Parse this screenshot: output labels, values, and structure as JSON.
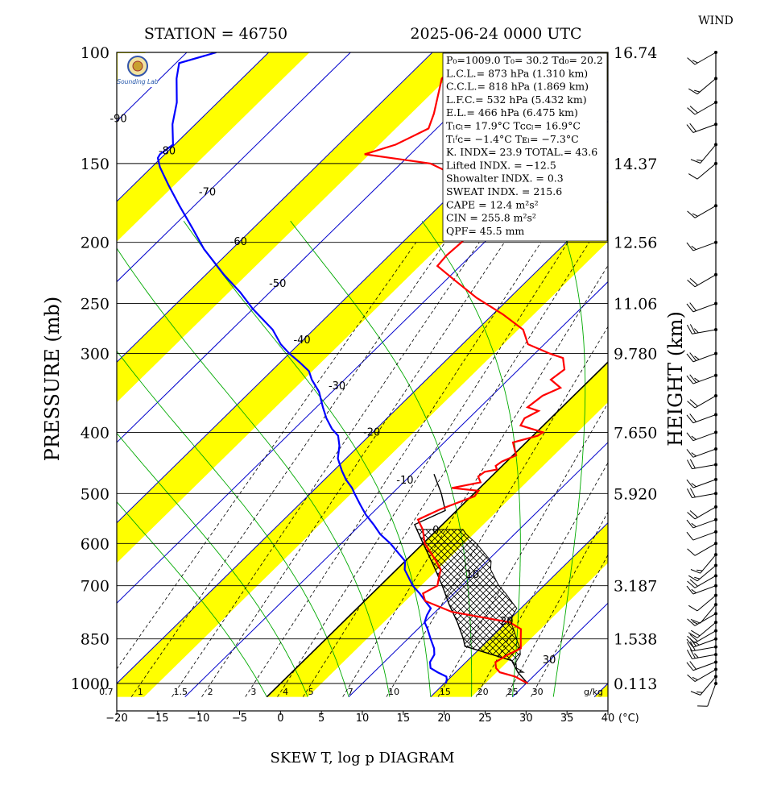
{
  "header": {
    "station": "STATION = 46750",
    "datetime": "2025-06-24 0000 UTC",
    "wind_label": "WIND",
    "footer_title": "SKEW T, log p DIAGRAM",
    "logo_text": "Sounding Lab"
  },
  "colors": {
    "band": "#ffff00",
    "isotherm": "#0000cc",
    "moist_adiabat": "#00aa00",
    "temperature": "#ff0000",
    "dewpoint": "#0000ff",
    "mixing_ratio": "#000000",
    "cape_hatch": "#000000"
  },
  "indices": [
    "P₀=1009.0 T₀= 30.2 Td₀= 20.2",
    "L.C.L.= 873 hPa (1.310 km)",
    "C.C.L.= 818 hPa (1.869 km)",
    "L.F.C.= 532 hPa (5.432 km)",
    "E.L.= 466 hPa (6.475 km)",
    "Tₗᴄₗ= 17.9°C  Tᴄᴄₗ= 16.9°C",
    "Tₗᶠᴄ= −1.4°C  Tᴇₗ= −7.3°C",
    "K. INDX= 23.9  TOTAL.= 43.6",
    "Lifted INDX. = −12.5",
    "Showalter INDX. =    0.3",
    "SWEAT INDX. =  215.6",
    "CAPE =    12.4 m²s²",
    "CIN   =  255.8 m²s²",
    "QPF= 45.5 mm"
  ],
  "chart_data": {
    "type": "skew-t",
    "title": "SKEW T, log p DIAGRAM",
    "ylabel": "PRESSURE (mb)",
    "y2label": "HEIGHT (km)",
    "xunit": "(°C)",
    "xlim": [
      -20,
      40
    ],
    "ylim": [
      1000,
      100
    ],
    "y_scale": "log",
    "x_ticks": [
      "−20",
      "−15",
      "−10",
      "−5",
      "0",
      "5",
      "10",
      "15",
      "20",
      "25",
      "30",
      "35",
      "40"
    ],
    "x_tick_values": [
      -20,
      -15,
      -10,
      -5,
      0,
      5,
      10,
      15,
      20,
      25,
      30,
      35,
      40
    ],
    "pressure_levels": [
      1000,
      850,
      700,
      600,
      500,
      400,
      300,
      250,
      200,
      150,
      100
    ],
    "pressure_labels": [
      "1000",
      "850",
      "700",
      "600",
      "500",
      "400",
      "300",
      "250",
      "200",
      "150",
      "100"
    ],
    "heights": [
      {
        "p": 1000,
        "label": "0.113"
      },
      {
        "p": 850,
        "label": "1.538"
      },
      {
        "p": 700,
        "label": "3.187"
      },
      {
        "p": 500,
        "label": "5.920"
      },
      {
        "p": 400,
        "label": "7.650"
      },
      {
        "p": 300,
        "label": "9.780"
      },
      {
        "p": 250,
        "label": "11.06"
      },
      {
        "p": 200,
        "label": "12.56"
      },
      {
        "p": 150,
        "label": "14.37"
      },
      {
        "p": 100,
        "label": "16.74"
      }
    ],
    "isotherm_labels": [
      {
        "t": -90,
        "p": 127,
        "label": "-90"
      },
      {
        "t": -80,
        "p": 143,
        "label": "-80"
      },
      {
        "t": -70,
        "p": 166,
        "label": "-70"
      },
      {
        "t": -60,
        "p": 199,
        "label": "-60"
      },
      {
        "t": -50,
        "p": 232,
        "label": "-50"
      },
      {
        "t": -40,
        "p": 285,
        "label": "-40"
      },
      {
        "t": -30,
        "p": 337,
        "label": "-30"
      },
      {
        "t": -20,
        "p": 399,
        "label": "-20"
      },
      {
        "t": -10,
        "p": 475,
        "label": "-10"
      },
      {
        "t": 0,
        "p": 570,
        "label": "0"
      },
      {
        "t": 10,
        "p": 670,
        "label": "10"
      },
      {
        "t": 20,
        "p": 795,
        "label": "20"
      },
      {
        "t": 30,
        "p": 915,
        "label": "30"
      }
    ],
    "mixing_ratios": [
      0.7,
      1,
      1.5,
      2,
      3,
      4,
      5,
      7,
      10,
      15,
      20,
      25,
      30
    ],
    "mixing_ratio_labels": [
      "0.7",
      "1",
      "1.5",
      "2",
      "3",
      "4",
      "5",
      "7",
      "10",
      "15",
      "20",
      "25",
      "30"
    ],
    "mixing_ratio_unit": "g/kg",
    "series": [
      {
        "name": "temperature",
        "points": [
          [
            1000,
            30.2
          ],
          [
            975,
            27.8
          ],
          [
            960,
            25.4
          ],
          [
            945,
            24.4
          ],
          [
            925,
            23.6
          ],
          [
            900,
            24.2
          ],
          [
            880,
            25.0
          ],
          [
            850,
            23.8
          ],
          [
            820,
            22.6
          ],
          [
            800,
            20.4
          ],
          [
            770,
            12.0
          ],
          [
            740,
            7.4
          ],
          [
            720,
            6.2
          ],
          [
            700,
            7.0
          ],
          [
            680,
            6.2
          ],
          [
            660,
            5.4
          ],
          [
            640,
            3.8
          ],
          [
            600,
            0.2
          ],
          [
            570,
            -1.8
          ],
          [
            550,
            -3.6
          ],
          [
            530,
            -2.2
          ],
          [
            505,
            0.4
          ],
          [
            495,
            0.2
          ],
          [
            490,
            -3.4
          ],
          [
            480,
            -0.6
          ],
          [
            470,
            -1.6
          ],
          [
            462,
            -1.4
          ],
          [
            458,
            -0.2
          ],
          [
            452,
            -0.8
          ],
          [
            445,
            -0.6
          ],
          [
            435,
            0.4
          ],
          [
            425,
            -0.6
          ],
          [
            415,
            -1.6
          ],
          [
            405,
            0.6
          ],
          [
            400,
            0.8
          ],
          [
            390,
            -2.8
          ],
          [
            380,
            -3.2
          ],
          [
            370,
            -2.4
          ],
          [
            365,
            -4.2
          ],
          [
            350,
            -3.8
          ],
          [
            340,
            -2.6
          ],
          [
            330,
            -4.8
          ],
          [
            318,
            -4.4
          ],
          [
            305,
            -6.0
          ],
          [
            300,
            -8.2
          ],
          [
            290,
            -12.0
          ],
          [
            275,
            -14.4
          ],
          [
            260,
            -18.8
          ],
          [
            245,
            -24.0
          ],
          [
            230,
            -28.8
          ],
          [
            218,
            -32.8
          ],
          [
            210,
            -33.0
          ],
          [
            200,
            -32.8
          ],
          [
            185,
            -33.0
          ],
          [
            170,
            -36.0
          ],
          [
            158,
            -41.0
          ],
          [
            150,
            -46.4
          ],
          [
            145,
            -55.6
          ],
          [
            140,
            -53.0
          ],
          [
            132,
            -51.0
          ],
          [
            125,
            -52.2
          ],
          [
            110,
            -55.6
          ],
          [
            102,
            -55.2
          ],
          [
            100,
            -54.8
          ]
        ]
      },
      {
        "name": "dewpoint",
        "points": [
          [
            1000,
            20.2
          ],
          [
            985,
            19.8
          ],
          [
            975,
            19.4
          ],
          [
            960,
            17.8
          ],
          [
            945,
            16.4
          ],
          [
            925,
            15.6
          ],
          [
            900,
            15.2
          ],
          [
            880,
            14.4
          ],
          [
            850,
            12.8
          ],
          [
            820,
            11.2
          ],
          [
            800,
            10.0
          ],
          [
            780,
            9.4
          ],
          [
            760,
            9.0
          ],
          [
            740,
            7.4
          ],
          [
            720,
            5.8
          ],
          [
            700,
            4.0
          ],
          [
            660,
            1.0
          ],
          [
            640,
            0.0
          ],
          [
            600,
            -4.0
          ],
          [
            580,
            -6.4
          ],
          [
            560,
            -8.4
          ],
          [
            540,
            -10.6
          ],
          [
            520,
            -12.6
          ],
          [
            500,
            -14.6
          ],
          [
            490,
            -15.6
          ],
          [
            475,
            -17.4
          ],
          [
            460,
            -19.0
          ],
          [
            440,
            -21.0
          ],
          [
            420,
            -22.4
          ],
          [
            405,
            -23.8
          ],
          [
            395,
            -25.4
          ],
          [
            380,
            -27.4
          ],
          [
            365,
            -29.2
          ],
          [
            345,
            -31.6
          ],
          [
            330,
            -34.0
          ],
          [
            320,
            -35.4
          ],
          [
            310,
            -37.6
          ],
          [
            300,
            -40.0
          ],
          [
            290,
            -42.2
          ],
          [
            275,
            -45.0
          ],
          [
            255,
            -50.0
          ],
          [
            240,
            -53.6
          ],
          [
            225,
            -57.8
          ],
          [
            205,
            -63.4
          ],
          [
            190,
            -67.4
          ],
          [
            175,
            -71.8
          ],
          [
            162,
            -75.8
          ],
          [
            152,
            -79.0
          ],
          [
            147,
            -80.4
          ],
          [
            145,
            -80.6
          ],
          [
            140,
            -80.2
          ],
          [
            130,
            -82.8
          ],
          [
            120,
            -85.0
          ],
          [
            110,
            -88.0
          ],
          [
            104,
            -89.6
          ],
          [
            100,
            -86.4
          ]
        ]
      },
      {
        "name": "parcel",
        "points": [
          [
            1000,
            30.2
          ],
          [
            960,
            27.6
          ],
          [
            920,
            25.4
          ],
          [
            873,
            17.9
          ],
          [
            850,
            16.8
          ],
          [
            800,
            14.0
          ],
          [
            750,
            10.8
          ],
          [
            700,
            7.6
          ],
          [
            650,
            4.0
          ],
          [
            600,
            0.0
          ],
          [
            560,
            -3.4
          ],
          [
            532,
            -1.4
          ],
          [
            500,
            -4.0
          ],
          [
            466,
            -7.3
          ]
        ]
      }
    ],
    "wind_barbs": [
      {
        "p": 1000,
        "dir": 200,
        "spd": 10
      },
      {
        "p": 975,
        "dir": 220,
        "spd": 15
      },
      {
        "p": 950,
        "dir": 240,
        "spd": 15
      },
      {
        "p": 925,
        "dir": 250,
        "spd": 20
      },
      {
        "p": 900,
        "dir": 260,
        "spd": 25
      },
      {
        "p": 875,
        "dir": 260,
        "spd": 20
      },
      {
        "p": 850,
        "dir": 250,
        "spd": 25
      },
      {
        "p": 825,
        "dir": 240,
        "spd": 20
      },
      {
        "p": 800,
        "dir": 230,
        "spd": 20
      },
      {
        "p": 775,
        "dir": 240,
        "spd": 15
      },
      {
        "p": 750,
        "dir": 220,
        "spd": 10
      },
      {
        "p": 725,
        "dir": 230,
        "spd": 10
      },
      {
        "p": 700,
        "dir": 250,
        "spd": 15
      },
      {
        "p": 675,
        "dir": 240,
        "spd": 20
      },
      {
        "p": 650,
        "dir": 230,
        "spd": 15
      },
      {
        "p": 625,
        "dir": 220,
        "spd": 15
      },
      {
        "p": 600,
        "dir": 240,
        "spd": 10
      },
      {
        "p": 575,
        "dir": 250,
        "spd": 10
      },
      {
        "p": 550,
        "dir": 250,
        "spd": 15
      },
      {
        "p": 525,
        "dir": 240,
        "spd": 20
      },
      {
        "p": 500,
        "dir": 260,
        "spd": 20
      },
      {
        "p": 475,
        "dir": 250,
        "spd": 15
      },
      {
        "p": 450,
        "dir": 260,
        "spd": 20
      },
      {
        "p": 425,
        "dir": 250,
        "spd": 15
      },
      {
        "p": 400,
        "dir": 250,
        "spd": 15
      },
      {
        "p": 375,
        "dir": 250,
        "spd": 20
      },
      {
        "p": 350,
        "dir": 240,
        "spd": 20
      },
      {
        "p": 325,
        "dir": 250,
        "spd": 25
      },
      {
        "p": 300,
        "dir": 250,
        "spd": 25
      },
      {
        "p": 275,
        "dir": 260,
        "spd": 25
      },
      {
        "p": 250,
        "dir": 250,
        "spd": 20
      },
      {
        "p": 225,
        "dir": 240,
        "spd": 20
      },
      {
        "p": 200,
        "dir": 250,
        "spd": 15
      },
      {
        "p": 175,
        "dir": 240,
        "spd": 15
      },
      {
        "p": 150,
        "dir": 230,
        "spd": 10
      },
      {
        "p": 140,
        "dir": 220,
        "spd": 15
      },
      {
        "p": 130,
        "dir": 250,
        "spd": 20
      },
      {
        "p": 120,
        "dir": 240,
        "spd": 20
      },
      {
        "p": 110,
        "dir": 230,
        "spd": 15
      },
      {
        "p": 100,
        "dir": 240,
        "spd": 15
      }
    ]
  }
}
